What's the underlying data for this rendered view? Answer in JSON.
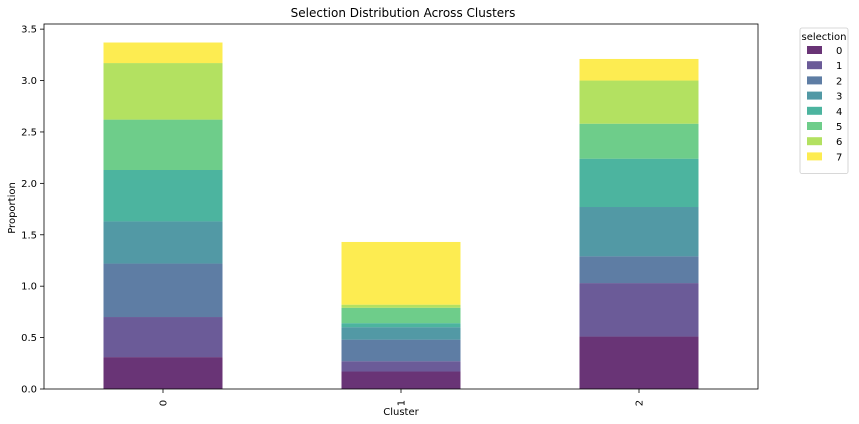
{
  "chart_data": {
    "type": "bar",
    "stacked": true,
    "title": "Selection Distribution Across Clusters",
    "xlabel": "Cluster",
    "ylabel": "Proportion",
    "categories": [
      "0",
      "1",
      "2"
    ],
    "ylim": [
      0,
      3.55
    ],
    "yticks": [
      "0.0",
      "0.5",
      "1.0",
      "1.5",
      "2.0",
      "2.5",
      "3.0",
      "3.5"
    ],
    "legend": {
      "title": "selection",
      "position": "outside-top-right"
    },
    "series": [
      {
        "name": "0",
        "color": "#440154",
        "values": [
          0.31,
          0.17,
          0.51
        ]
      },
      {
        "name": "1",
        "color": "#46327e",
        "values": [
          0.39,
          0.1,
          0.52
        ]
      },
      {
        "name": "2",
        "color": "#365c8d",
        "values": [
          0.52,
          0.21,
          0.26
        ]
      },
      {
        "name": "3",
        "color": "#277f8e",
        "values": [
          0.41,
          0.12,
          0.48
        ]
      },
      {
        "name": "4",
        "color": "#1fa187",
        "values": [
          0.5,
          0.04,
          0.47
        ]
      },
      {
        "name": "5",
        "color": "#4ac16d",
        "values": [
          0.49,
          0.15,
          0.34
        ]
      },
      {
        "name": "6",
        "color": "#a0da39",
        "values": [
          0.55,
          0.03,
          0.42
        ]
      },
      {
        "name": "7",
        "color": "#fde725",
        "values": [
          0.2,
          0.61,
          0.21
        ]
      }
    ]
  }
}
